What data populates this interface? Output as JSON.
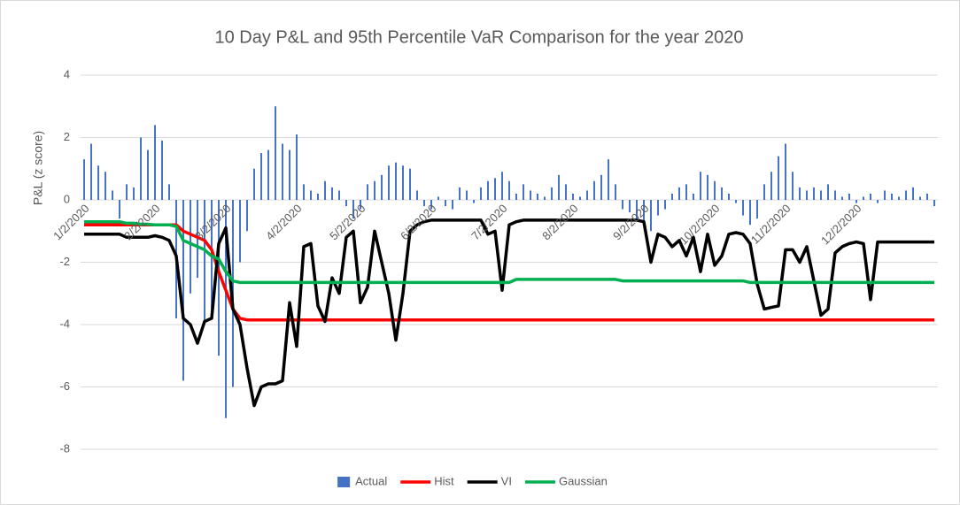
{
  "chart_data": {
    "type": "bar",
    "title": "10 Day P&L and 95th Percentile VaR Comparison for the year 2020",
    "y_label": "P&L (z score)",
    "categories": [
      "1/2/2020",
      null,
      null,
      null,
      null,
      null,
      null,
      null,
      null,
      null,
      "2/2/2020",
      null,
      null,
      null,
      null,
      null,
      null,
      null,
      null,
      null,
      "3/2/2020",
      null,
      null,
      null,
      null,
      null,
      null,
      null,
      null,
      null,
      "4/2/2020",
      null,
      null,
      null,
      null,
      null,
      null,
      null,
      null,
      "5/2/2020",
      null,
      null,
      null,
      null,
      null,
      null,
      null,
      null,
      null,
      "6/2/2020",
      null,
      null,
      null,
      null,
      null,
      null,
      null,
      null,
      null,
      "7/2/2020",
      null,
      null,
      null,
      null,
      null,
      null,
      null,
      null,
      null,
      "8/2/2020",
      null,
      null,
      null,
      null,
      null,
      null,
      null,
      null,
      null,
      "9/2/2020",
      null,
      null,
      null,
      null,
      null,
      null,
      null,
      null,
      null,
      "10/2/2020",
      null,
      null,
      null,
      null,
      null,
      null,
      null,
      null,
      null,
      "11/2/2020",
      null,
      null,
      null,
      null,
      null,
      null,
      null,
      null,
      null,
      "12/2/2020",
      null,
      null,
      null,
      null,
      null,
      null,
      null,
      null,
      null,
      null,
      null
    ],
    "series": [
      {
        "name": "Actual",
        "type": "bar",
        "color": "#4472c4",
        "values": [
          1.3,
          1.8,
          1.1,
          0.9,
          0.3,
          -0.6,
          0.5,
          0.4,
          2.0,
          1.6,
          2.4,
          1.9,
          0.5,
          -3.8,
          -5.8,
          -3.0,
          -2.5,
          -4.0,
          -3.5,
          -5.0,
          -7.0,
          -6.0,
          -2.0,
          -1.0,
          1.0,
          1.5,
          1.6,
          3.0,
          1.8,
          1.6,
          2.1,
          0.5,
          0.3,
          0.2,
          0.6,
          0.4,
          0.3,
          -0.2,
          -0.6,
          -0.3,
          0.5,
          0.6,
          0.8,
          1.1,
          1.2,
          1.1,
          1.0,
          0.3,
          -0.2,
          -0.3,
          0.1,
          -0.2,
          -0.3,
          0.4,
          0.3,
          -0.1,
          0.4,
          0.6,
          0.7,
          0.9,
          0.6,
          0.2,
          0.5,
          0.3,
          0.2,
          0.1,
          0.4,
          0.8,
          0.5,
          0.2,
          0.1,
          0.3,
          0.6,
          0.8,
          1.3,
          0.5,
          -0.3,
          -0.4,
          -0.6,
          -0.8,
          -1.0,
          -0.5,
          -0.3,
          0.2,
          0.4,
          0.5,
          0.2,
          0.9,
          0.8,
          0.6,
          0.4,
          0.2,
          -0.1,
          -0.5,
          -0.8,
          -0.6,
          0.5,
          0.9,
          1.4,
          1.8,
          0.9,
          0.4,
          0.3,
          0.4,
          0.3,
          0.5,
          0.3,
          0.1,
          0.2,
          -0.1,
          0.1,
          0.2,
          -0.1,
          0.3,
          0.2,
          0.1,
          0.3,
          0.4,
          0.1,
          0.2,
          -0.2
        ]
      },
      {
        "name": "Hist",
        "type": "line",
        "color": "#ff0000",
        "values": [
          -0.8,
          -0.8,
          -0.8,
          -0.8,
          -0.8,
          -0.8,
          -0.8,
          -0.8,
          -0.8,
          -0.8,
          -0.8,
          -0.8,
          -0.8,
          -0.8,
          -1.0,
          -1.1,
          -1.2,
          -1.3,
          -1.6,
          -2.3,
          -2.9,
          -3.5,
          -3.8,
          -3.85,
          -3.85,
          -3.85,
          -3.85,
          -3.85,
          -3.85,
          -3.85,
          -3.85,
          -3.85,
          -3.85,
          -3.85,
          -3.85,
          -3.85,
          -3.85,
          -3.85,
          -3.85,
          -3.85,
          -3.85,
          -3.85,
          -3.85,
          -3.85,
          -3.85,
          -3.85,
          -3.85,
          -3.85,
          -3.85,
          -3.85,
          -3.85,
          -3.85,
          -3.85,
          -3.85,
          -3.85,
          -3.85,
          -3.85,
          -3.85,
          -3.85,
          -3.85,
          -3.85,
          -3.85,
          -3.85,
          -3.85,
          -3.85,
          -3.85,
          -3.85,
          -3.85,
          -3.85,
          -3.85,
          -3.85,
          -3.85,
          -3.85,
          -3.85,
          -3.85,
          -3.85,
          -3.85,
          -3.85,
          -3.85,
          -3.85,
          -3.85,
          -3.85,
          -3.85,
          -3.85,
          -3.85,
          -3.85,
          -3.85,
          -3.85,
          -3.85,
          -3.85,
          -3.85,
          -3.85,
          -3.85,
          -3.85,
          -3.85,
          -3.85,
          -3.85,
          -3.85,
          -3.85,
          -3.85,
          -3.85,
          -3.85,
          -3.85,
          -3.85,
          -3.85,
          -3.85,
          -3.85,
          -3.85,
          -3.85,
          -3.85,
          -3.85,
          -3.85,
          -3.85,
          -3.85,
          -3.85,
          -3.85,
          -3.85,
          -3.85,
          -3.85,
          -3.85,
          -3.85
        ]
      },
      {
        "name": "VI",
        "type": "line",
        "color": "#000000",
        "values": [
          -1.1,
          -1.1,
          -1.1,
          -1.1,
          -1.1,
          -1.1,
          -1.2,
          -1.2,
          -1.2,
          -1.2,
          -1.15,
          -1.2,
          -1.3,
          -1.8,
          -3.8,
          -4.0,
          -4.6,
          -3.9,
          -3.8,
          -1.4,
          -0.9,
          -3.5,
          -4.0,
          -5.4,
          -6.6,
          -6.0,
          -5.9,
          -5.9,
          -5.8,
          -3.3,
          -4.7,
          -1.5,
          -1.4,
          -3.4,
          -3.9,
          -2.5,
          -3.0,
          -1.2,
          -1.0,
          -3.3,
          -2.8,
          -1.0,
          -2.0,
          -3.0,
          -4.5,
          -3.0,
          -1.0,
          -0.8,
          -0.7,
          -0.65,
          -0.65,
          -0.65,
          -0.65,
          -0.65,
          -0.65,
          -0.65,
          -0.65,
          -1.1,
          -1.0,
          -2.9,
          -0.8,
          -0.7,
          -0.65,
          -0.65,
          -0.65,
          -0.65,
          -0.65,
          -0.65,
          -0.65,
          -0.65,
          -0.65,
          -0.65,
          -0.65,
          -0.65,
          -0.65,
          -0.65,
          -0.65,
          -0.65,
          -0.65,
          -0.7,
          -2.0,
          -1.1,
          -1.2,
          -1.5,
          -1.3,
          -1.8,
          -1.2,
          -2.3,
          -1.1,
          -2.1,
          -1.8,
          -1.1,
          -1.05,
          -1.1,
          -1.4,
          -2.7,
          -3.5,
          -3.45,
          -3.4,
          -1.6,
          -1.6,
          -2.0,
          -1.5,
          -2.6,
          -3.7,
          -3.5,
          -1.7,
          -1.5,
          -1.4,
          -1.35,
          -1.4,
          -3.2,
          -1.35,
          -1.35,
          -1.35,
          -1.35,
          -1.35,
          -1.35,
          -1.35,
          -1.35,
          -1.35
        ]
      },
      {
        "name": "Gaussian",
        "type": "line",
        "color": "#00b050",
        "values": [
          -0.7,
          -0.7,
          -0.7,
          -0.7,
          -0.7,
          -0.7,
          -0.75,
          -0.75,
          -0.78,
          -0.78,
          -0.8,
          -0.8,
          -0.8,
          -0.85,
          -1.3,
          -1.4,
          -1.5,
          -1.6,
          -1.8,
          -1.9,
          -2.3,
          -2.6,
          -2.65,
          -2.65,
          -2.65,
          -2.65,
          -2.65,
          -2.65,
          -2.65,
          -2.65,
          -2.65,
          -2.65,
          -2.65,
          -2.65,
          -2.65,
          -2.65,
          -2.65,
          -2.65,
          -2.65,
          -2.65,
          -2.65,
          -2.65,
          -2.65,
          -2.65,
          -2.65,
          -2.65,
          -2.65,
          -2.65,
          -2.65,
          -2.65,
          -2.65,
          -2.65,
          -2.65,
          -2.65,
          -2.65,
          -2.65,
          -2.65,
          -2.65,
          -2.65,
          -2.65,
          -2.65,
          -2.55,
          -2.55,
          -2.55,
          -2.55,
          -2.55,
          -2.55,
          -2.55,
          -2.55,
          -2.55,
          -2.55,
          -2.55,
          -2.55,
          -2.55,
          -2.55,
          -2.55,
          -2.6,
          -2.6,
          -2.6,
          -2.6,
          -2.6,
          -2.6,
          -2.6,
          -2.6,
          -2.6,
          -2.6,
          -2.6,
          -2.6,
          -2.6,
          -2.6,
          -2.6,
          -2.6,
          -2.6,
          -2.6,
          -2.65,
          -2.65,
          -2.65,
          -2.65,
          -2.65,
          -2.65,
          -2.65,
          -2.65,
          -2.65,
          -2.65,
          -2.65,
          -2.65,
          -2.65,
          -2.65,
          -2.65,
          -2.65,
          -2.65,
          -2.65,
          -2.65,
          -2.65,
          -2.65,
          -2.65,
          -2.65,
          -2.65,
          -2.65,
          -2.65,
          -2.65
        ]
      }
    ],
    "ylim": [
      -9,
      4
    ],
    "yticks": [
      -8,
      -6,
      -4,
      -2,
      0,
      2,
      4
    ],
    "grid": true,
    "legend": "bottom"
  }
}
